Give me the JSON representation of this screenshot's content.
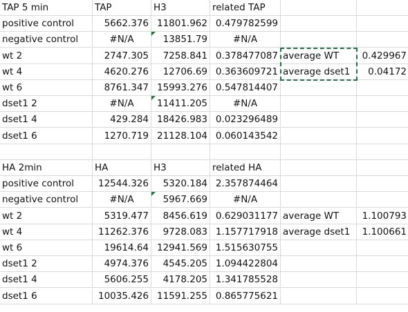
{
  "sheet": {
    "rows": [
      [
        "TAP 5 min",
        "TAP",
        "H3",
        "related TAP",
        "",
        ""
      ],
      [
        "positive control",
        "5662.376",
        "11801.962",
        "0.479782599",
        "",
        ""
      ],
      [
        "negative control",
        "#N/A",
        "13851.79",
        "#N/A",
        "",
        ""
      ],
      [
        "wt 2",
        "2747.305",
        "7258.841",
        "0.378477087",
        "average WT",
        "0.429967"
      ],
      [
        "wt 4",
        "4620.276",
        "12706.69",
        "0.363609721",
        "average dset1",
        "0.04172"
      ],
      [
        "wt 6",
        "8761.347",
        "15993.276",
        "0.547814407",
        "",
        ""
      ],
      [
        "dset1 2",
        "#N/A",
        "11411.205",
        "#N/A",
        "",
        ""
      ],
      [
        "dset1 4",
        "429.284",
        "18426.983",
        "0.023296489",
        "",
        ""
      ],
      [
        "dset1 6",
        "1270.719",
        "21128.104",
        "0.060143542",
        "",
        ""
      ],
      [
        "",
        "",
        "",
        "",
        "",
        ""
      ],
      [
        "HA 2min",
        "HA",
        "H3",
        "related HA",
        "",
        ""
      ],
      [
        "positive control",
        "12544.326",
        "5320.184",
        "2.357874464",
        "",
        ""
      ],
      [
        "negative control",
        "#N/A",
        "5967.669",
        "#N/A",
        "",
        ""
      ],
      [
        "wt 2",
        "5319.477",
        "8456.619",
        "0.629031177",
        "average WT",
        "1.100793"
      ],
      [
        "wt 4",
        "11262.376",
        "9728.083",
        "1.157717918",
        "average dset1",
        "1.100661"
      ],
      [
        "wt 6",
        "19614.64",
        "12941.569",
        "1.515630755",
        "",
        ""
      ],
      [
        "dset1 2",
        "4974.376",
        "4545.205",
        "1.094422804",
        "",
        ""
      ],
      [
        "dset1 4",
        "5606.255",
        "4178.205",
        "1.341785528",
        "",
        ""
      ],
      [
        "dset1 6",
        "10035.426",
        "11591.255",
        "0.865775621",
        "",
        ""
      ]
    ]
  },
  "colors": {
    "gridline": "#d9d9d9",
    "selection": "#217346",
    "error_indicator": "#1e7b34"
  }
}
